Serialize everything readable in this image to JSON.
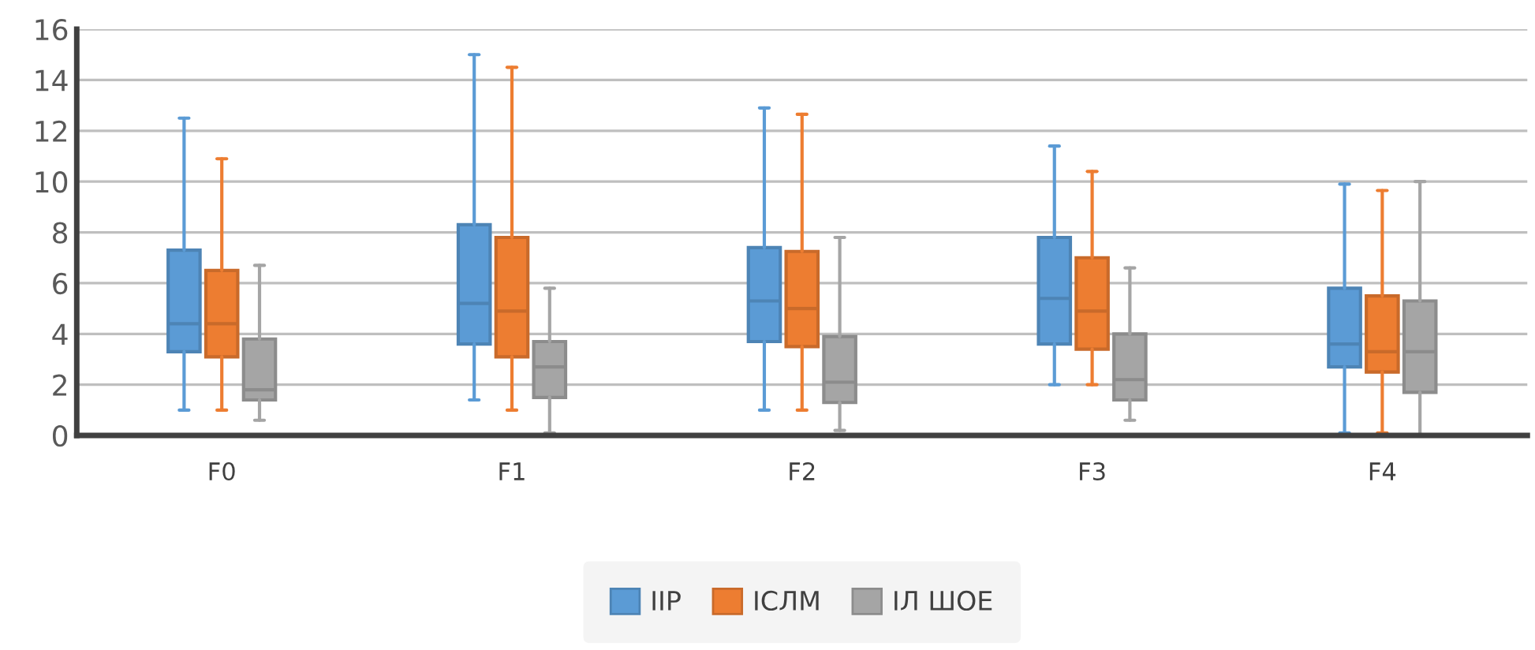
{
  "chart_data": {
    "type": "box",
    "categories": [
      "F0",
      "F1",
      "F2",
      "F3",
      "F4"
    ],
    "ylim": [
      0,
      16
    ],
    "yticks": [
      0,
      2,
      4,
      6,
      8,
      10,
      12,
      14,
      16
    ],
    "grid": "y",
    "legend": "bottom",
    "series": [
      {
        "name": "IIP",
        "color": "#5b9bd5",
        "boxes": [
          {
            "low": 1,
            "q1": 3.3,
            "median": 4.4,
            "q3": 7.3,
            "high": 12.5
          },
          {
            "low": 1.4,
            "q1": 3.6,
            "median": 5.2,
            "q3": 8.3,
            "high": 15
          },
          {
            "low": 1,
            "q1": 3.7,
            "median": 5.3,
            "q3": 7.4,
            "high": 12.9
          },
          {
            "low": 2,
            "q1": 3.6,
            "median": 5.4,
            "q3": 7.8,
            "high": 11.4
          },
          {
            "low": 0.1,
            "q1": 2.7,
            "median": 3.6,
            "q3": 5.8,
            "high": 9.9
          }
        ]
      },
      {
        "name": "ІСЛМ",
        "color": "#ed7d31",
        "boxes": [
          {
            "low": 1,
            "q1": 3.1,
            "median": 4.4,
            "q3": 6.5,
            "high": 10.9
          },
          {
            "low": 1,
            "q1": 3.1,
            "median": 4.9,
            "q3": 7.8,
            "high": 14.5
          },
          {
            "low": 1,
            "q1": 3.5,
            "median": 5,
            "q3": 7.25,
            "high": 12.65
          },
          {
            "low": 2,
            "q1": 3.4,
            "median": 4.9,
            "q3": 7,
            "high": 10.4
          },
          {
            "low": 0.1,
            "q1": 2.5,
            "median": 3.3,
            "q3": 5.5,
            "high": 9.65
          }
        ]
      },
      {
        "name": "ІЛ ШОЕ",
        "color": "#a5a5a5",
        "boxes": [
          {
            "low": 0.6,
            "q1": 1.4,
            "median": 1.8,
            "q3": 3.8,
            "high": 6.7
          },
          {
            "low": 0.1,
            "q1": 1.5,
            "median": 2.7,
            "q3": 3.7,
            "high": 5.8
          },
          {
            "low": 0.2,
            "q1": 1.3,
            "median": 2.1,
            "q3": 3.9,
            "high": 7.8
          },
          {
            "low": 0.6,
            "q1": 1.4,
            "median": 2.2,
            "q3": 4,
            "high": 6.6
          },
          {
            "low": 0,
            "q1": 1.7,
            "median": 3.3,
            "q3": 5.3,
            "high": 10
          }
        ]
      }
    ]
  }
}
